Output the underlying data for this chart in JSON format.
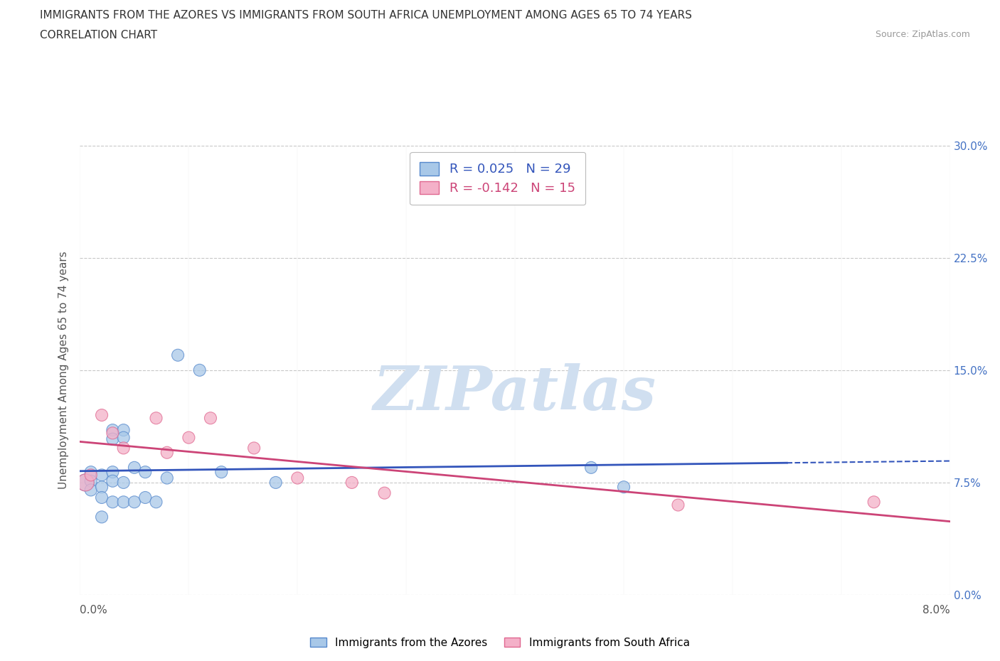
{
  "title_line1": "IMMIGRANTS FROM THE AZORES VS IMMIGRANTS FROM SOUTH AFRICA UNEMPLOYMENT AMONG AGES 65 TO 74 YEARS",
  "title_line2": "CORRELATION CHART",
  "source_text": "Source: ZipAtlas.com",
  "ylabel": "Unemployment Among Ages 65 to 74 years",
  "xlim": [
    0.0,
    0.08
  ],
  "ylim": [
    0.0,
    0.3
  ],
  "yticks": [
    0.0,
    0.075,
    0.15,
    0.225,
    0.3
  ],
  "ytick_labels": [
    "0.0%",
    "7.5%",
    "15.0%",
    "22.5%",
    "30.0%"
  ],
  "xtick_labels_bottom": [
    "0.0%",
    "8.0%"
  ],
  "xtick_positions_bottom": [
    0.0,
    0.08
  ],
  "azores_R": 0.025,
  "azores_N": 29,
  "africa_R": -0.142,
  "africa_N": 15,
  "azores_color": "#a8c8e8",
  "africa_color": "#f4b0c8",
  "azores_edge_color": "#5588cc",
  "africa_edge_color": "#e06890",
  "azores_line_color": "#3355bb",
  "africa_line_color": "#cc4477",
  "background_color": "#ffffff",
  "grid_color": "#c8c8c8",
  "watermark_color": "#d0dff0",
  "azores_x": [
    0.0005,
    0.001,
    0.001,
    0.001,
    0.002,
    0.002,
    0.002,
    0.002,
    0.003,
    0.003,
    0.003,
    0.003,
    0.003,
    0.004,
    0.004,
    0.004,
    0.004,
    0.005,
    0.005,
    0.006,
    0.006,
    0.007,
    0.008,
    0.009,
    0.011,
    0.013,
    0.018,
    0.047,
    0.05
  ],
  "azores_y": [
    0.075,
    0.082,
    0.076,
    0.07,
    0.08,
    0.072,
    0.065,
    0.052,
    0.11,
    0.104,
    0.082,
    0.076,
    0.062,
    0.11,
    0.105,
    0.075,
    0.062,
    0.085,
    0.062,
    0.082,
    0.065,
    0.062,
    0.078,
    0.16,
    0.15,
    0.082,
    0.075,
    0.085,
    0.072
  ],
  "azores_sizes": [
    300,
    150,
    150,
    150,
    150,
    150,
    150,
    150,
    150,
    150,
    150,
    150,
    150,
    150,
    150,
    150,
    150,
    150,
    150,
    150,
    150,
    150,
    150,
    150,
    150,
    150,
    150,
    150,
    150
  ],
  "africa_x": [
    0.0005,
    0.001,
    0.002,
    0.003,
    0.004,
    0.007,
    0.008,
    0.01,
    0.012,
    0.016,
    0.02,
    0.025,
    0.028,
    0.055,
    0.073
  ],
  "africa_y": [
    0.075,
    0.08,
    0.12,
    0.108,
    0.098,
    0.118,
    0.095,
    0.105,
    0.118,
    0.098,
    0.078,
    0.075,
    0.068,
    0.06,
    0.062
  ],
  "africa_sizes": [
    300,
    150,
    150,
    150,
    150,
    150,
    150,
    150,
    150,
    150,
    150,
    150,
    150,
    150,
    150
  ]
}
